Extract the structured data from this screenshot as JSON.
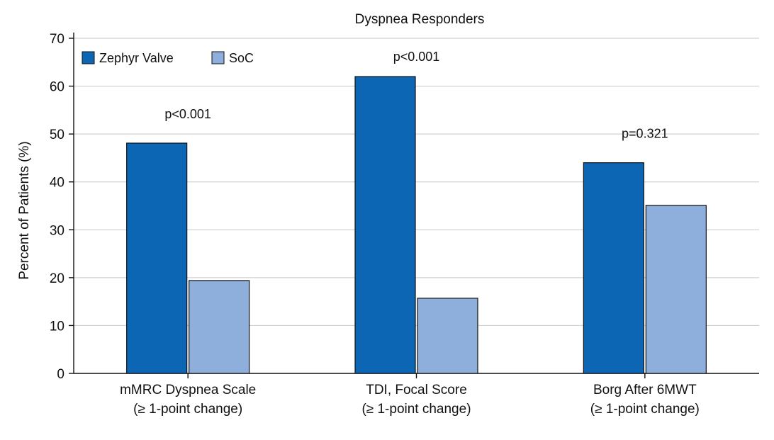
{
  "chart_data": {
    "type": "bar",
    "title": "Dyspnea Responders",
    "xlabel": "",
    "ylabel": "Percent of Patients (%)",
    "ylim": [
      0,
      70
    ],
    "yticks": [
      0,
      10,
      20,
      30,
      40,
      50,
      60,
      70
    ],
    "grid": true,
    "legend_position": "top-left",
    "categories": [
      [
        "mMRC Dyspnea Scale",
        "(≥ 1-point change)"
      ],
      [
        "TDI, Focal Score",
        "(≥ 1-point change)"
      ],
      [
        "Borg After 6MWT",
        "(≥ 1-point change)"
      ]
    ],
    "series": [
      {
        "name": "Zephyr Valve",
        "color": "#0d66b4",
        "values": [
          48.1,
          62,
          44
        ]
      },
      {
        "name": "SoC",
        "color": "#8eaedb",
        "values": [
          19.4,
          15.7,
          35.1
        ]
      }
    ],
    "annotations": [
      "p<0.001",
      "p<0.001",
      "p=0.321"
    ]
  }
}
